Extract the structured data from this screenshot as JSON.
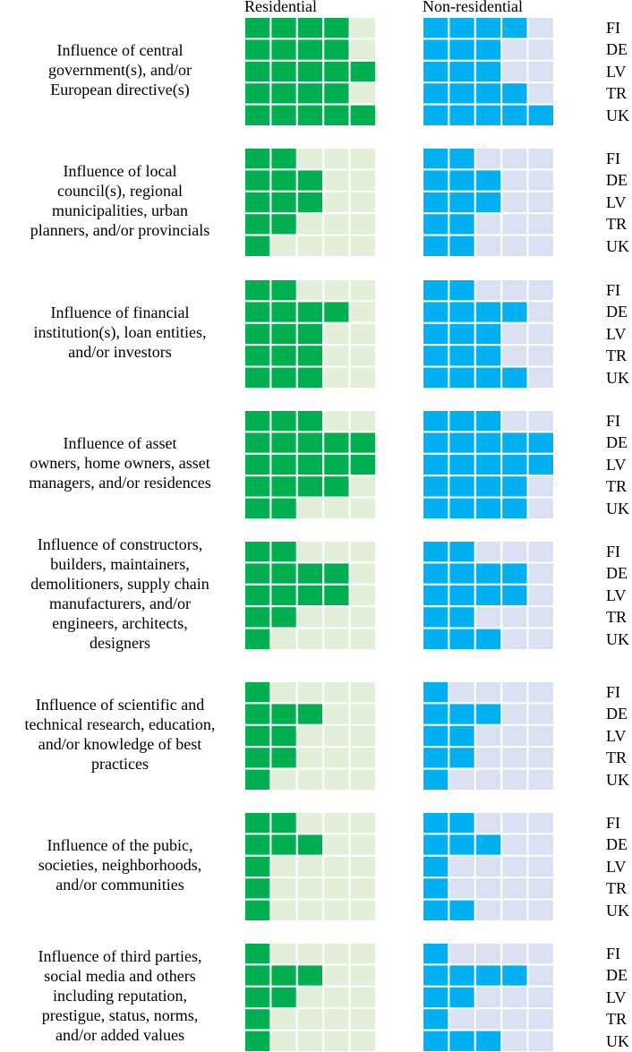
{
  "chart_data": {
    "type": "heatmap",
    "columns": [
      "Residential",
      "Non-residential"
    ],
    "countries": [
      "FI",
      "DE",
      "LV",
      "TR",
      "UK"
    ],
    "max_level": 5,
    "colors": {
      "residential_filled": "#00b050",
      "residential_empty": "#e2efd9",
      "nonresidential_filled": "#00b0f0",
      "nonresidential_empty": "#d9e1f2",
      "gridline": "#ffffff"
    },
    "groups": [
      {
        "label": "Influence of central government(s), and/or European directive(s)",
        "residential": [
          4,
          4,
          5,
          4,
          5
        ],
        "nonresidential": [
          4,
          3,
          3,
          4,
          5
        ]
      },
      {
        "label": "Influence of local council(s), regional municipalities, urban planners, and/or provincials",
        "residential": [
          2,
          3,
          3,
          2,
          1
        ],
        "nonresidential": [
          2,
          3,
          3,
          2,
          2
        ]
      },
      {
        "label": "Influence of financial institution(s), loan entities, and/or investors",
        "residential": [
          2,
          4,
          3,
          3,
          3
        ],
        "nonresidential": [
          2,
          4,
          3,
          3,
          4
        ]
      },
      {
        "label": "Influence of asset owners, home owners, asset managers, and/or residences",
        "residential": [
          3,
          5,
          5,
          4,
          2
        ],
        "nonresidential": [
          3,
          5,
          5,
          4,
          4
        ]
      },
      {
        "label": "Influence of constructors, builders, maintainers, demolitioners, supply chain manufacturers, and/or engineers, architects, designers",
        "residential": [
          2,
          4,
          4,
          2,
          1
        ],
        "nonresidential": [
          2,
          4,
          4,
          2,
          3
        ]
      },
      {
        "label": "Influence of scientific and technical research, education, and/or knowledge of best practices",
        "residential": [
          1,
          3,
          2,
          2,
          1
        ],
        "nonresidential": [
          1,
          3,
          2,
          2,
          1
        ]
      },
      {
        "label": "Influence of the pubic, societies, neighborhoods, and/or communities",
        "residential": [
          2,
          3,
          1,
          1,
          1
        ],
        "nonresidential": [
          2,
          3,
          1,
          1,
          2
        ]
      },
      {
        "label": "Influence of third parties, social media and others including reputation, prestigue, status, norms, and/or added values",
        "residential": [
          1,
          3,
          2,
          1,
          1
        ],
        "nonresidential": [
          1,
          4,
          2,
          1,
          3
        ]
      }
    ]
  }
}
